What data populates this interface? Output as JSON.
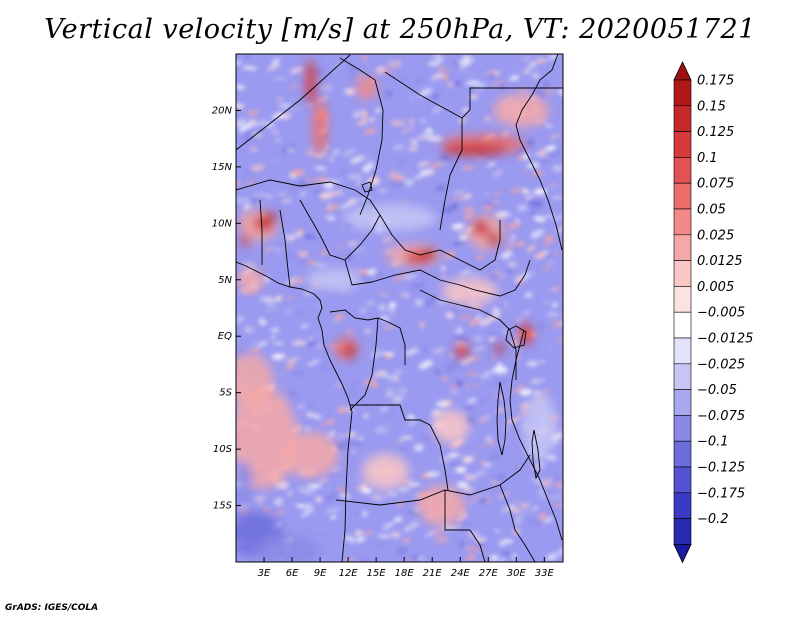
{
  "title": "Vertical velocity [m/s] at 250hPa, VT: 2020051721",
  "credit": "GrADS: IGES/COLA",
  "map": {
    "lon_range": [
      0,
      35
    ],
    "lat_range": [
      -20,
      25
    ],
    "lon_ticks": [
      {
        "value": 3,
        "label": "3E"
      },
      {
        "value": 6,
        "label": "6E"
      },
      {
        "value": 9,
        "label": "9E"
      },
      {
        "value": 12,
        "label": "12E"
      },
      {
        "value": 15,
        "label": "15E"
      },
      {
        "value": 18,
        "label": "18E"
      },
      {
        "value": 21,
        "label": "21E"
      },
      {
        "value": 24,
        "label": "24E"
      },
      {
        "value": 27,
        "label": "27E"
      },
      {
        "value": 30,
        "label": "30E"
      },
      {
        "value": 33,
        "label": "33E"
      }
    ],
    "lat_ticks": [
      {
        "value": 20,
        "label": "20N"
      },
      {
        "value": 15,
        "label": "15N"
      },
      {
        "value": 10,
        "label": "10N"
      },
      {
        "value": 5,
        "label": "5N"
      },
      {
        "value": 0,
        "label": "EQ"
      },
      {
        "value": -5,
        "label": "5S"
      },
      {
        "value": -10,
        "label": "10S"
      },
      {
        "value": -15,
        "label": "15S"
      }
    ]
  },
  "colorbar": {
    "levels": [
      {
        "label": "0.175",
        "color": "#b01818"
      },
      {
        "label": "0.15",
        "color": "#c42828"
      },
      {
        "label": "0.125",
        "color": "#d63a3a"
      },
      {
        "label": "0.1",
        "color": "#e25252"
      },
      {
        "label": "0.075",
        "color": "#ec6c6c"
      },
      {
        "label": "0.05",
        "color": "#f28a8a"
      },
      {
        "label": "0.025",
        "color": "#f6a8a8"
      },
      {
        "label": "0.0125",
        "color": "#fac6c6"
      },
      {
        "label": "0.005",
        "color": "#fde2e2"
      },
      {
        "label": "−0.005",
        "color": "#ffffff"
      },
      {
        "label": "−0.0125",
        "color": "#e2e2fa"
      },
      {
        "label": "−0.025",
        "color": "#c6c6f4"
      },
      {
        "label": "−0.05",
        "color": "#a8a8ee"
      },
      {
        "label": "−0.075",
        "color": "#8a8ae6"
      },
      {
        "label": "−0.1",
        "color": "#6c6cdc"
      },
      {
        "label": "−0.125",
        "color": "#5252d2"
      },
      {
        "label": "−0.175",
        "color": "#3a3ac4"
      },
      {
        "label": "−0.2",
        "color": "#2828b0"
      }
    ],
    "top_arrow_color": "#a01010",
    "bottom_arrow_color": "#1a1aa0"
  },
  "field": {
    "base_color": "#9a9af0",
    "features": [
      {
        "lon": 1.5,
        "lat": 10,
        "rx": 1.2,
        "ry": 0.8,
        "color": "#ef7878"
      },
      {
        "lon": 2.5,
        "lat": 9.8,
        "rx": 2.0,
        "ry": 1.4,
        "color": "#f2a8a8"
      },
      {
        "lon": 3.0,
        "lat": 10.0,
        "rx": 1.0,
        "ry": 0.8,
        "color": "#c42828"
      },
      {
        "lon": 3.7,
        "lat": 10.5,
        "rx": 0.6,
        "ry": 0.5,
        "color": "#b01818"
      },
      {
        "lon": 1.0,
        "lat": 8.5,
        "rx": 0.5,
        "ry": 0.6,
        "color": "#d63a3a"
      },
      {
        "lon": 19.0,
        "lat": 7.2,
        "rx": 3.0,
        "ry": 1.0,
        "color": "#f2a8a8"
      },
      {
        "lon": 19.5,
        "lat": 7.0,
        "rx": 1.5,
        "ry": 0.6,
        "color": "#d63a3a"
      },
      {
        "lon": 20.7,
        "lat": 7.3,
        "rx": 0.8,
        "ry": 0.5,
        "color": "#b01818"
      },
      {
        "lon": 26.8,
        "lat": 9.2,
        "rx": 2.0,
        "ry": 1.6,
        "color": "#f2a8a8"
      },
      {
        "lon": 26.2,
        "lat": 9.6,
        "rx": 0.9,
        "ry": 0.7,
        "color": "#c42828"
      },
      {
        "lon": 27.6,
        "lat": 8.6,
        "rx": 0.7,
        "ry": 0.6,
        "color": "#b01818"
      },
      {
        "lon": 11.8,
        "lat": -1.1,
        "rx": 1.3,
        "ry": 1.0,
        "color": "#ec6c6c"
      },
      {
        "lon": 12.2,
        "lat": -1.3,
        "rx": 0.6,
        "ry": 0.5,
        "color": "#b01818"
      },
      {
        "lon": 24.2,
        "lat": -1.3,
        "rx": 0.8,
        "ry": 0.7,
        "color": "#d63a3a"
      },
      {
        "lon": 28.2,
        "lat": -1.1,
        "rx": 0.5,
        "ry": 0.5,
        "color": "#c42828"
      },
      {
        "lon": 31.0,
        "lat": 0.2,
        "rx": 0.8,
        "ry": 1.0,
        "color": "#d63a3a"
      },
      {
        "lon": 26.5,
        "lat": 17.0,
        "rx": 4.5,
        "ry": 0.9,
        "color": "#ec6c6c"
      },
      {
        "lon": 25.5,
        "lat": 16.5,
        "rx": 3.5,
        "ry": 0.5,
        "color": "#c42828"
      },
      {
        "lon": 9.0,
        "lat": 18.5,
        "rx": 0.8,
        "ry": 2.5,
        "color": "#ec6c6c"
      },
      {
        "lon": 8.0,
        "lat": 22.5,
        "rx": 0.6,
        "ry": 2.0,
        "color": "#d63a3a"
      },
      {
        "lon": 14.0,
        "lat": 22.0,
        "rx": 1.2,
        "ry": 1.0,
        "color": "#f28a8a"
      },
      {
        "lon": 30.5,
        "lat": 20.0,
        "rx": 3.0,
        "ry": 1.5,
        "color": "#f6a8a8"
      },
      {
        "lon": 16.5,
        "lat": 10.5,
        "rx": 5.0,
        "ry": 1.2,
        "color": "#c6c6f4"
      },
      {
        "lon": 3.0,
        "lat": -9.0,
        "rx": 3.5,
        "ry": 4.5,
        "color": "#f6a8a8"
      },
      {
        "lon": 1.5,
        "lat": -4.0,
        "rx": 2.5,
        "ry": 2.5,
        "color": "#f2a8a8"
      },
      {
        "lon": 8.0,
        "lat": -10.5,
        "rx": 3.0,
        "ry": 2.0,
        "color": "#f6a8a8"
      },
      {
        "lon": 22.0,
        "lat": -15.0,
        "rx": 2.5,
        "ry": 1.8,
        "color": "#f6a8a8"
      },
      {
        "lon": 16.0,
        "lat": -12.0,
        "rx": 2.5,
        "ry": 1.6,
        "color": "#fac6c6"
      },
      {
        "lon": 23.0,
        "lat": -8.0,
        "rx": 2.0,
        "ry": 1.5,
        "color": "#fac6c6"
      },
      {
        "lon": 25.0,
        "lat": 4.0,
        "rx": 3.0,
        "ry": 1.2,
        "color": "#fac6c6"
      },
      {
        "lon": 1.5,
        "lat": 5.0,
        "rx": 1.5,
        "ry": 1.0,
        "color": "#f6a8a8"
      },
      {
        "lon": 2.0,
        "lat": -17.5,
        "rx": 3.0,
        "ry": 2.0,
        "color": "#6c6cdc"
      },
      {
        "lon": 5.5,
        "lat": -19.0,
        "rx": 3.5,
        "ry": 1.3,
        "color": "#8a8ae6"
      },
      {
        "lon": 0.8,
        "lat": -13.0,
        "rx": 1.0,
        "ry": 2.0,
        "color": "#8a8ae6"
      },
      {
        "lon": 10.5,
        "lat": 5.0,
        "rx": 3.0,
        "ry": 1.0,
        "color": "#c6c6f4"
      },
      {
        "lon": 32.5,
        "lat": -8.0,
        "rx": 1.8,
        "ry": 3.0,
        "color": "#c6c6f4"
      }
    ]
  }
}
